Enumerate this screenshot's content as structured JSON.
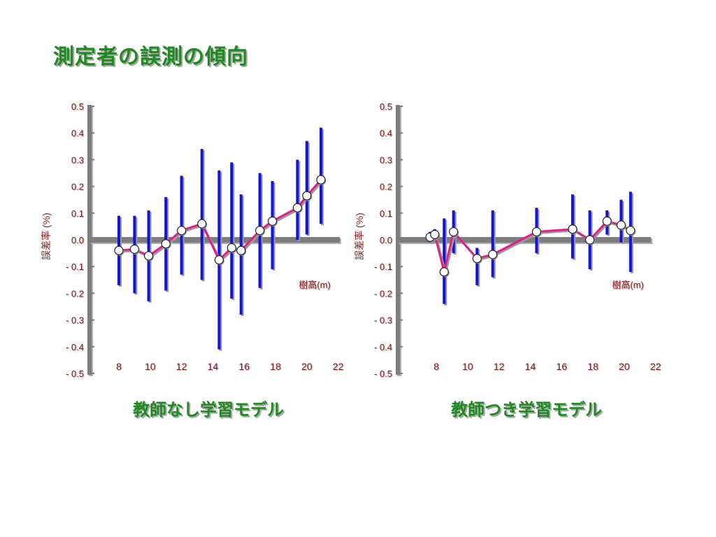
{
  "slide": {
    "title": "測定者の誤測の傾向"
  },
  "chart_data": [
    {
      "type": "line",
      "title": "教師なし学習モデル",
      "xlabel": "樹高(m)",
      "ylabel": "誤差率 (%)",
      "xlim": [
        6.5,
        22
      ],
      "ylim": [
        -0.5,
        0.5
      ],
      "x_ticks": [
        "8",
        "10",
        "12",
        "14",
        "16",
        "18",
        "20",
        "22"
      ],
      "y_ticks": [
        "0.5",
        "0.4",
        "0.3",
        "0.2",
        "0.1",
        "0.0",
        "- 0.1",
        "- 0.2",
        "- 0.3",
        "- 0.4",
        "- 0.5"
      ],
      "colors": {
        "line": "#e0208a",
        "error_bar": "#1414d2",
        "axis": "#7d7d7d"
      },
      "series": [
        {
          "x": [
            8.0,
            9.0,
            9.9,
            11.0,
            12.0,
            13.3,
            14.4,
            15.2,
            15.8,
            17.0,
            17.8,
            19.4,
            20.0,
            20.9
          ],
          "y": [
            -0.04,
            -0.035,
            -0.06,
            -0.015,
            0.035,
            0.06,
            -0.075,
            -0.03,
            -0.04,
            0.035,
            0.07,
            0.12,
            0.165,
            0.225
          ],
          "upper": [
            0.09,
            0.09,
            0.11,
            0.16,
            0.24,
            0.34,
            0.26,
            0.29,
            0.17,
            0.25,
            0.22,
            0.3,
            0.37,
            0.42
          ],
          "lower": [
            -0.17,
            -0.2,
            -0.23,
            -0.19,
            -0.13,
            -0.15,
            -0.41,
            -0.22,
            -0.28,
            -0.18,
            -0.11,
            0.0,
            0.02,
            0.06
          ]
        }
      ]
    },
    {
      "type": "line",
      "title": "教師つき学習モデル",
      "xlabel": "樹高(m)",
      "ylabel": "誤差率 (%)",
      "xlim": [
        6.5,
        22
      ],
      "ylim": [
        -0.5,
        0.5
      ],
      "x_ticks": [
        "8",
        "10",
        "12",
        "14",
        "16",
        "18",
        "20",
        "22"
      ],
      "y_ticks": [
        "0.5",
        "0.4",
        "0.3",
        "0.2",
        "0.1",
        "0.0",
        "- 0.1",
        "- 0.2",
        "- 0.3",
        "- 0.4",
        "- 0.5"
      ],
      "colors": {
        "line": "#e0208a",
        "error_bar": "#1414d2",
        "axis": "#7d7d7d"
      },
      "series": [
        {
          "x": [
            7.6,
            7.9,
            8.5,
            9.1,
            10.6,
            11.6,
            14.4,
            16.7,
            17.8,
            18.9,
            19.8,
            20.4
          ],
          "y": [
            0.01,
            0.02,
            -0.12,
            0.03,
            -0.07,
            -0.055,
            0.03,
            0.04,
            0.0,
            0.07,
            0.055,
            0.035
          ],
          "upper": [
            0.03,
            0.04,
            0.08,
            0.11,
            -0.03,
            0.11,
            0.12,
            0.17,
            0.11,
            0.11,
            0.15,
            0.18
          ],
          "lower": [
            -0.01,
            0.0,
            -0.24,
            -0.05,
            -0.17,
            -0.14,
            -0.05,
            -0.07,
            -0.11,
            0.02,
            -0.01,
            -0.12
          ]
        }
      ]
    }
  ]
}
